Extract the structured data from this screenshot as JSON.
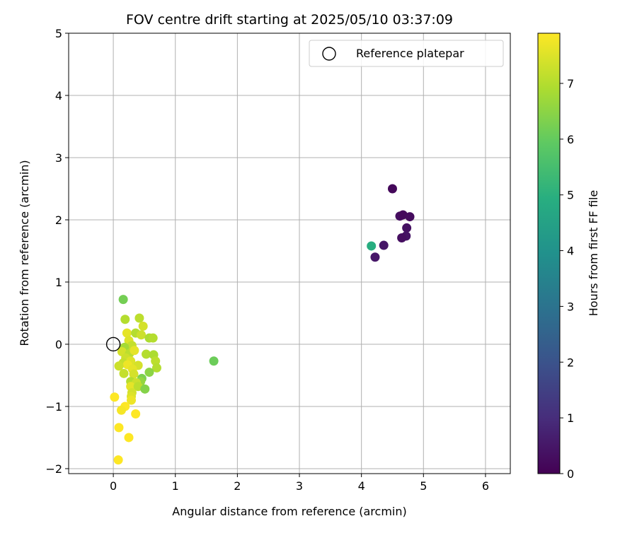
{
  "chart_data": {
    "type": "scatter",
    "title": "FOV centre drift starting at 2025/05/10 03:37:09",
    "xlabel": "Angular distance from reference (arcmin)",
    "ylabel": "Rotation from reference (arcmin)",
    "xlim": [
      -0.72,
      6.4
    ],
    "ylim": [
      -2.08,
      5.0
    ],
    "x_ticks": [
      0,
      1,
      2,
      3,
      4,
      5,
      6
    ],
    "y_ticks": [
      -2,
      -1,
      0,
      1,
      2,
      3,
      4,
      5
    ],
    "grid": true,
    "legend_position": "top-right",
    "legend": [
      {
        "label": "Reference platepar",
        "marker": "open-circle"
      }
    ],
    "reference_point": {
      "x": 0,
      "y": 0
    },
    "colorbar": {
      "label": "Hours from first FF file",
      "colormap": "viridis",
      "range": [
        0,
        7.9
      ],
      "ticks": [
        0,
        1,
        2,
        3,
        4,
        5,
        6,
        7
      ]
    },
    "points": [
      {
        "x": 4.5,
        "y": 2.5,
        "hours": 0.15
      },
      {
        "x": 4.62,
        "y": 2.06,
        "hours": 0.3
      },
      {
        "x": 4.67,
        "y": 2.08,
        "hours": 0.2
      },
      {
        "x": 4.78,
        "y": 2.05,
        "hours": 0.25
      },
      {
        "x": 4.73,
        "y": 1.87,
        "hours": 0.35
      },
      {
        "x": 4.72,
        "y": 1.74,
        "hours": 0.4
      },
      {
        "x": 4.65,
        "y": 1.71,
        "hours": 0.3
      },
      {
        "x": 4.36,
        "y": 1.59,
        "hours": 0.45
      },
      {
        "x": 4.22,
        "y": 1.4,
        "hours": 0.5
      },
      {
        "x": 4.16,
        "y": 1.58,
        "hours": 4.9
      },
      {
        "x": 1.62,
        "y": -0.27,
        "hours": 6.1
      },
      {
        "x": 0.16,
        "y": 0.72,
        "hours": 6.2
      },
      {
        "x": 0.19,
        "y": 0.4,
        "hours": 7.0
      },
      {
        "x": 0.42,
        "y": 0.42,
        "hours": 7.1
      },
      {
        "x": 0.48,
        "y": 0.29,
        "hours": 7.4
      },
      {
        "x": 0.22,
        "y": 0.18,
        "hours": 7.6
      },
      {
        "x": 0.36,
        "y": 0.18,
        "hours": 7.0
      },
      {
        "x": 0.45,
        "y": 0.15,
        "hours": 7.3
      },
      {
        "x": 0.58,
        "y": 0.1,
        "hours": 6.9
      },
      {
        "x": 0.64,
        "y": 0.1,
        "hours": 7.0
      },
      {
        "x": 0.25,
        "y": 0.06,
        "hours": 7.5
      },
      {
        "x": 0.3,
        "y": -0.02,
        "hours": 7.2
      },
      {
        "x": 0.18,
        "y": -0.05,
        "hours": 6.8
      },
      {
        "x": 0.14,
        "y": -0.12,
        "hours": 7.4
      },
      {
        "x": 0.26,
        "y": -0.15,
        "hours": 7.1
      },
      {
        "x": 0.34,
        "y": -0.1,
        "hours": 7.6
      },
      {
        "x": 0.53,
        "y": -0.16,
        "hours": 7.0
      },
      {
        "x": 0.65,
        "y": -0.17,
        "hours": 6.9
      },
      {
        "x": 0.2,
        "y": -0.22,
        "hours": 7.3
      },
      {
        "x": 0.28,
        "y": -0.27,
        "hours": 7.5
      },
      {
        "x": 0.68,
        "y": -0.27,
        "hours": 7.1
      },
      {
        "x": 0.16,
        "y": -0.3,
        "hours": 7.2
      },
      {
        "x": 0.23,
        "y": -0.33,
        "hours": 7.7
      },
      {
        "x": 0.4,
        "y": -0.34,
        "hours": 7.4
      },
      {
        "x": 0.09,
        "y": -0.35,
        "hours": 7.3
      },
      {
        "x": 0.7,
        "y": -0.38,
        "hours": 7.0
      },
      {
        "x": 0.31,
        "y": -0.4,
        "hours": 7.6
      },
      {
        "x": 0.58,
        "y": -0.45,
        "hours": 6.5
      },
      {
        "x": 0.17,
        "y": -0.47,
        "hours": 7.2
      },
      {
        "x": 0.33,
        "y": -0.48,
        "hours": 7.4
      },
      {
        "x": 0.46,
        "y": -0.55,
        "hours": 6.3
      },
      {
        "x": 0.44,
        "y": -0.6,
        "hours": 6.6
      },
      {
        "x": 0.28,
        "y": -0.6,
        "hours": 7.0
      },
      {
        "x": 0.37,
        "y": -0.62,
        "hours": 7.3
      },
      {
        "x": 0.28,
        "y": -0.68,
        "hours": 7.6
      },
      {
        "x": 0.4,
        "y": -0.68,
        "hours": 7.1
      },
      {
        "x": 0.51,
        "y": -0.72,
        "hours": 6.4
      },
      {
        "x": 0.3,
        "y": -0.78,
        "hours": 7.4
      },
      {
        "x": 0.29,
        "y": -0.84,
        "hours": 7.5
      },
      {
        "x": 0.02,
        "y": -0.85,
        "hours": 7.9
      },
      {
        "x": 0.29,
        "y": -0.9,
        "hours": 7.7
      },
      {
        "x": 0.19,
        "y": -1.0,
        "hours": 7.9
      },
      {
        "x": 0.13,
        "y": -1.06,
        "hours": 7.8
      },
      {
        "x": 0.36,
        "y": -1.12,
        "hours": 7.9
      },
      {
        "x": 0.09,
        "y": -1.34,
        "hours": 7.9
      },
      {
        "x": 0.25,
        "y": -1.5,
        "hours": 7.9
      },
      {
        "x": 0.08,
        "y": -1.86,
        "hours": 7.9
      }
    ]
  }
}
